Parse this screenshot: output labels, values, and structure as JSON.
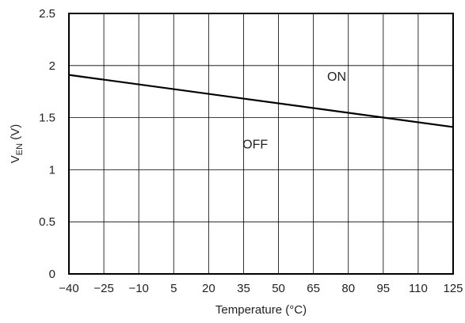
{
  "chart_data": {
    "type": "line",
    "title": "",
    "xlabel": "Temperature (°C)",
    "ylabel": {
      "main": "V",
      "sub": "EN",
      "unit": " (V)"
    },
    "xlim": [
      -40,
      125
    ],
    "ylim": [
      0,
      2.5
    ],
    "x_ticks": [
      "−40",
      "−25",
      "−10",
      "5",
      "20",
      "35",
      "50",
      "65",
      "80",
      "95",
      "110",
      "125"
    ],
    "y_ticks": [
      "0",
      "0.5",
      "1",
      "1.5",
      "2",
      "2.5"
    ],
    "grid": true,
    "series": [
      {
        "x": [
          -40,
          125
        ],
        "y": [
          1.91,
          1.41
        ]
      }
    ],
    "annotations": [
      {
        "text": "ON",
        "x": 75,
        "y": 1.9
      },
      {
        "text": "OFF",
        "x": 40,
        "y": 1.25
      }
    ]
  }
}
